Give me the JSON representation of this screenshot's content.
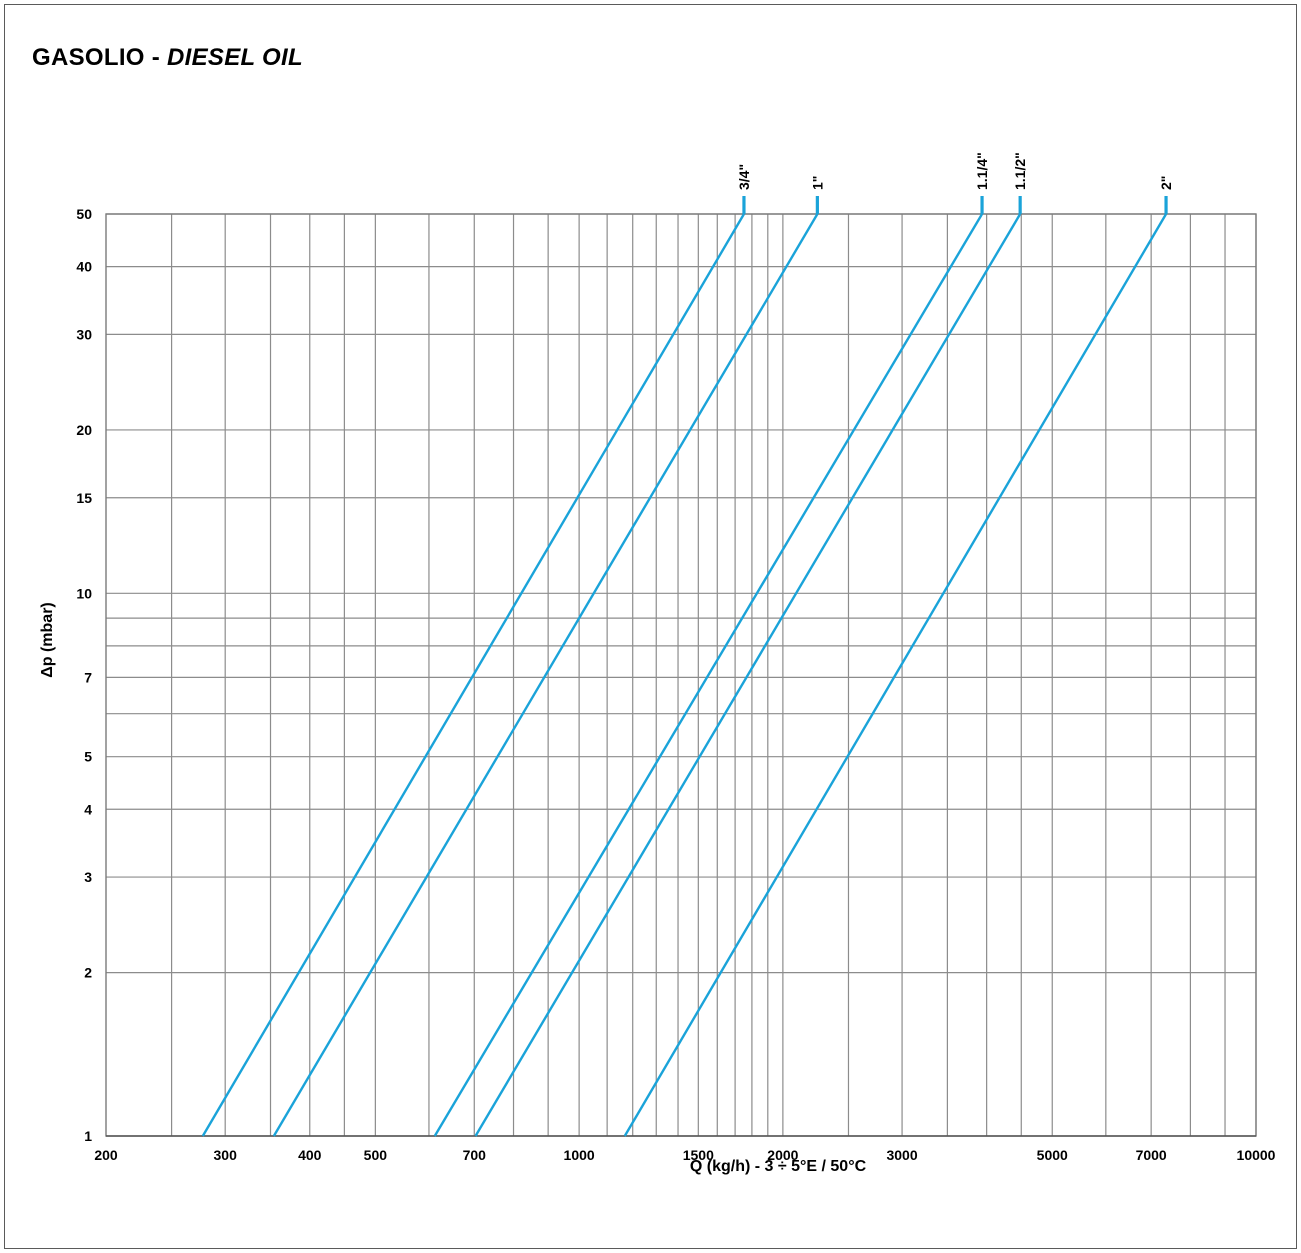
{
  "title": {
    "main": "GASOLIO - ",
    "italic": "DIESEL OIL"
  },
  "chart_data": {
    "type": "line",
    "xscale": "log",
    "yscale": "log",
    "xlabel": "Q (kg/h) - 3 ÷ 5°E / 50°C",
    "ylabel": "Δp (mbar)",
    "xlim": [
      200,
      10000
    ],
    "ylim": [
      1,
      50
    ],
    "grid": true,
    "xticks": [
      200,
      300,
      400,
      500,
      700,
      1000,
      1500,
      2000,
      3000,
      5000,
      7000,
      10000
    ],
    "yticks": [
      1,
      2,
      3,
      4,
      5,
      7,
      10,
      15,
      20,
      30,
      40,
      50
    ],
    "xgrid": [
      250,
      300,
      350,
      400,
      450,
      500,
      600,
      700,
      800,
      900,
      1000,
      1100,
      1200,
      1300,
      1400,
      1500,
      1600,
      1700,
      1800,
      1900,
      2000,
      2500,
      3000,
      3500,
      4000,
      4500,
      5000,
      6000,
      7000,
      8000,
      9000,
      10000
    ],
    "ygrid": [
      2,
      3,
      4,
      5,
      6,
      7,
      8,
      9,
      10,
      15,
      20,
      30,
      40,
      50
    ],
    "color": "#1aa3d9",
    "series": [
      {
        "name": "3/4\"",
        "x": [
          278,
          1752
        ],
        "y": [
          1,
          50
        ]
      },
      {
        "name": "1\"",
        "x": [
          354,
          2249
        ],
        "y": [
          1,
          50
        ]
      },
      {
        "name": "1.1/4\"",
        "x": [
          612,
          3938
        ],
        "y": [
          1,
          50
        ]
      },
      {
        "name": "1.1/2\"",
        "x": [
          703,
          4483
        ],
        "y": [
          1,
          50
        ]
      },
      {
        "name": "2\"",
        "x": [
          1168,
          7364
        ],
        "y": [
          1,
          50
        ]
      }
    ]
  }
}
